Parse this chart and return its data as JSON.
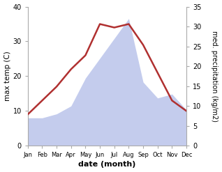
{
  "months": [
    "Jan",
    "Feb",
    "Mar",
    "Apr",
    "May",
    "Jun",
    "Jul",
    "Aug",
    "Sep",
    "Oct",
    "Nov",
    "Dec"
  ],
  "month_x": [
    1,
    2,
    3,
    4,
    5,
    6,
    7,
    8,
    9,
    10,
    11,
    12
  ],
  "max_temp": [
    9,
    13,
    17,
    22,
    26,
    35,
    34,
    35,
    29,
    21,
    13,
    10
  ],
  "precipitation": [
    7,
    7,
    8,
    10,
    17,
    22,
    27,
    32,
    16,
    12,
    13,
    9
  ],
  "temp_ylim": [
    0,
    40
  ],
  "precip_ylim": [
    0,
    35
  ],
  "temp_yticks": [
    0,
    10,
    20,
    30,
    40
  ],
  "precip_yticks": [
    0,
    5,
    10,
    15,
    20,
    25,
    30,
    35
  ],
  "fill_color": "#b0bce8",
  "fill_alpha": 0.75,
  "line_color": "#b03030",
  "line_width": 1.8,
  "xlabel": "date (month)",
  "ylabel_left": "max temp (C)",
  "ylabel_right": "med. precipitation (kg/m2)",
  "bg_color": "#ffffff",
  "spine_color": "#aaaaaa",
  "tick_color": "#555555"
}
